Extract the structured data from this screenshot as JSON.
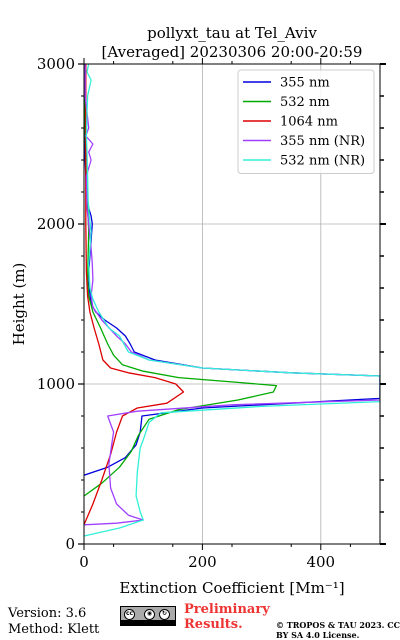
{
  "chart_data": {
    "type": "line",
    "title": "pollyxt_tau at Tel_Aviv",
    "subtitle": "[Averaged] 20230306 20:00-20:59",
    "xlabel": "Extinction Coefficient [Mm⁻¹]",
    "ylabel": "Height (m)",
    "xlim": [
      0,
      500
    ],
    "ylim": [
      0,
      3000
    ],
    "x_ticks": [
      "0",
      "200",
      "400"
    ],
    "y_ticks": [
      "0",
      "1000",
      "2000",
      "3000"
    ],
    "grid": true,
    "legend_position": "top-right",
    "series": [
      {
        "name": "355 nm",
        "color": "#0000dd",
        "points": [
          [
            0,
            430
          ],
          [
            40,
            480
          ],
          [
            70,
            540
          ],
          [
            88,
            620
          ],
          [
            95,
            700
          ],
          [
            98,
            800
          ],
          [
            200,
            850
          ],
          [
            350,
            880
          ],
          [
            500,
            910
          ],
          [
            500,
            1050
          ],
          [
            350,
            1070
          ],
          [
            200,
            1100
          ],
          [
            120,
            1150
          ],
          [
            85,
            1200
          ],
          [
            78,
            1250
          ],
          [
            70,
            1300
          ],
          [
            55,
            1350
          ],
          [
            35,
            1400
          ],
          [
            20,
            1450
          ],
          [
            12,
            1500
          ],
          [
            9,
            1600
          ],
          [
            8,
            1700
          ],
          [
            10,
            1800
          ],
          [
            12,
            1900
          ],
          [
            14,
            2000
          ],
          [
            12,
            2050
          ],
          [
            8,
            2100
          ],
          [
            4,
            2200
          ],
          [
            2,
            2400
          ],
          [
            2,
            2600
          ],
          [
            2,
            2800
          ],
          [
            2,
            3000
          ]
        ]
      },
      {
        "name": "532 nm",
        "color": "#00aa00",
        "points": [
          [
            0,
            300
          ],
          [
            30,
            380
          ],
          [
            60,
            480
          ],
          [
            80,
            580
          ],
          [
            92,
            680
          ],
          [
            110,
            780
          ],
          [
            160,
            840
          ],
          [
            260,
            900
          ],
          [
            320,
            950
          ],
          [
            325,
            990
          ],
          [
            260,
            1010
          ],
          [
            160,
            1040
          ],
          [
            100,
            1080
          ],
          [
            65,
            1120
          ],
          [
            50,
            1180
          ],
          [
            40,
            1250
          ],
          [
            28,
            1350
          ],
          [
            15,
            1450
          ],
          [
            8,
            1550
          ],
          [
            6,
            1650
          ],
          [
            7,
            1800
          ],
          [
            8,
            1950
          ],
          [
            7,
            2050
          ],
          [
            5,
            2200
          ],
          [
            3,
            2400
          ],
          [
            2,
            2600
          ],
          [
            2,
            2800
          ],
          [
            2,
            3000
          ]
        ]
      },
      {
        "name": "1064 nm",
        "color": "#dd0000",
        "points": [
          [
            0,
            120
          ],
          [
            15,
            250
          ],
          [
            30,
            400
          ],
          [
            45,
            560
          ],
          [
            55,
            700
          ],
          [
            65,
            800
          ],
          [
            90,
            850
          ],
          [
            140,
            880
          ],
          [
            168,
            950
          ],
          [
            155,
            1000
          ],
          [
            120,
            1040
          ],
          [
            75,
            1070
          ],
          [
            45,
            1100
          ],
          [
            32,
            1150
          ],
          [
            25,
            1250
          ],
          [
            17,
            1350
          ],
          [
            10,
            1450
          ],
          [
            6,
            1550
          ],
          [
            4,
            1700
          ],
          [
            3,
            2000
          ],
          [
            3,
            2300
          ],
          [
            3,
            2700
          ],
          [
            3,
            3000
          ]
        ]
      },
      {
        "name": "355 nm (NR)",
        "color": "#a040ff",
        "points": [
          [
            0,
            120
          ],
          [
            55,
            130
          ],
          [
            100,
            150
          ],
          [
            75,
            180
          ],
          [
            55,
            250
          ],
          [
            45,
            350
          ],
          [
            42,
            500
          ],
          [
            48,
            650
          ],
          [
            50,
            700
          ],
          [
            45,
            750
          ],
          [
            40,
            800
          ],
          [
            90,
            830
          ],
          [
            250,
            870
          ],
          [
            500,
            900
          ],
          [
            500,
            1050
          ],
          [
            350,
            1070
          ],
          [
            200,
            1100
          ],
          [
            110,
            1150
          ],
          [
            80,
            1200
          ],
          [
            70,
            1250
          ],
          [
            55,
            1300
          ],
          [
            30,
            1400
          ],
          [
            15,
            1480
          ],
          [
            12,
            1550
          ],
          [
            15,
            1650
          ],
          [
            14,
            1750
          ],
          [
            12,
            1850
          ],
          [
            8,
            2000
          ],
          [
            5,
            2100
          ],
          [
            4,
            2300
          ],
          [
            12,
            2400
          ],
          [
            8,
            2450
          ],
          [
            15,
            2500
          ],
          [
            3,
            2550
          ],
          [
            8,
            2600
          ],
          [
            2,
            2800
          ],
          [
            2,
            3000
          ]
        ]
      },
      {
        "name": "532 nm (NR)",
        "color": "#30f0d8",
        "points": [
          [
            0,
            50
          ],
          [
            60,
            100
          ],
          [
            100,
            150
          ],
          [
            95,
            200
          ],
          [
            88,
            300
          ],
          [
            90,
            450
          ],
          [
            95,
            600
          ],
          [
            100,
            650
          ],
          [
            110,
            760
          ],
          [
            130,
            820
          ],
          [
            300,
            860
          ],
          [
            500,
            890
          ],
          [
            500,
            1050
          ],
          [
            350,
            1070
          ],
          [
            200,
            1100
          ],
          [
            110,
            1150
          ],
          [
            75,
            1200
          ],
          [
            60,
            1300
          ],
          [
            42,
            1350
          ],
          [
            25,
            1450
          ],
          [
            15,
            1530
          ],
          [
            10,
            1600
          ],
          [
            8,
            1750
          ],
          [
            10,
            1850
          ],
          [
            12,
            1950
          ],
          [
            9,
            2050
          ],
          [
            7,
            2150
          ],
          [
            6,
            2300
          ],
          [
            5,
            2450
          ],
          [
            4,
            2550
          ],
          [
            5,
            2700
          ],
          [
            6,
            2800
          ],
          [
            12,
            2900
          ],
          [
            5,
            2950
          ],
          [
            8,
            3000
          ]
        ]
      }
    ]
  },
  "footer": {
    "version": "Version: 3.6",
    "method": "Method: Klett",
    "preliminary": "Preliminary Results.",
    "copyright": "© TROPOS & TAU 2023. CC BY SA 4.0 License."
  },
  "badge": {
    "icons": [
      "cc-icon",
      "by-icon",
      "sa-icon"
    ]
  }
}
